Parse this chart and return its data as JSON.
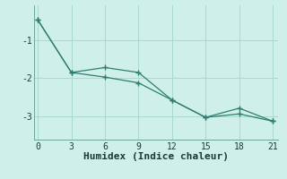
{
  "xlabel": "Humidex (Indice chaleur)",
  "bg_color": "#cff0ea",
  "line_color": "#2e7d70",
  "grid_color": "#aad8d0",
  "line1_x": [
    0,
    3,
    6,
    9,
    12,
    15,
    18,
    21
  ],
  "line1_y": [
    -0.48,
    -1.85,
    -1.72,
    -1.85,
    -2.57,
    -3.02,
    -2.78,
    -3.12
  ],
  "line2_x": [
    0,
    3,
    6,
    9,
    12,
    15,
    18,
    21
  ],
  "line2_y": [
    -0.48,
    -1.85,
    -1.97,
    -2.12,
    -2.57,
    -3.02,
    -2.93,
    -3.12
  ],
  "yticks": [
    -1,
    -2,
    -3
  ],
  "xticks": [
    0,
    3,
    6,
    9,
    12,
    15,
    18,
    21
  ],
  "xlim": [
    -0.3,
    21.5
  ],
  "ylim": [
    -3.6,
    -0.1
  ],
  "tick_fontsize": 7,
  "xlabel_fontsize": 8
}
